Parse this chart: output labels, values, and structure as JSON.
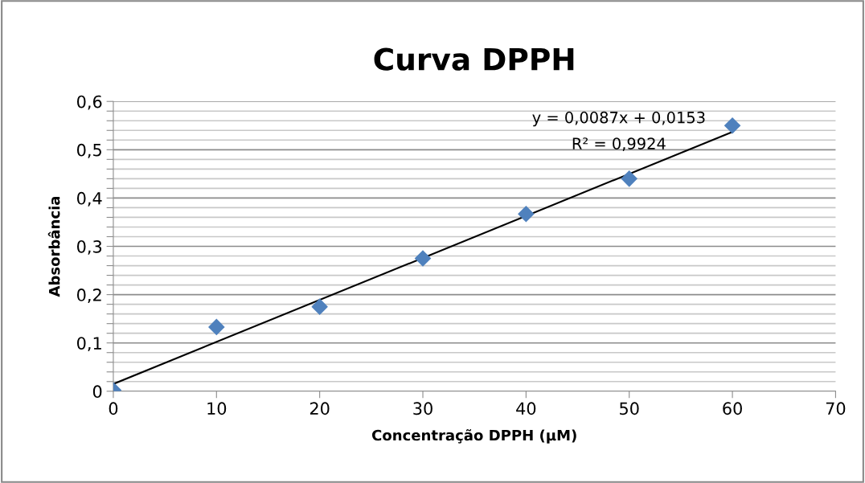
{
  "chart_data": {
    "type": "scatter",
    "title": "Curva DPPH",
    "xlabel": "Concentração DPPH (µM)",
    "ylabel": "Absorbância",
    "x": [
      0,
      10,
      20,
      30,
      40,
      50,
      60
    ],
    "series": [
      {
        "color": "#4f81bd",
        "values": [
          0.002,
          0.133,
          0.175,
          0.275,
          0.367,
          0.44,
          0.55
        ],
        "marker": "diamond"
      },
      {
        "type": "line",
        "color": "#000000",
        "x": [
          0,
          60
        ],
        "values": [
          0.015,
          0.537
        ],
        "marker": "none"
      }
    ],
    "xlim": [
      0,
      70
    ],
    "xticks": [
      0,
      10,
      20,
      30,
      40,
      50,
      60,
      70
    ],
    "ylim": [
      0,
      0.6
    ],
    "yticks": [
      {
        "value": 0,
        "label": "0"
      },
      {
        "value": 0.02,
        "label": null
      },
      {
        "value": 0.04,
        "label": null
      },
      {
        "value": 0.06,
        "label": null
      },
      {
        "value": 0.08,
        "label": null
      },
      {
        "value": 0.1,
        "label": "0,1"
      },
      {
        "value": 0.12,
        "label": null
      },
      {
        "value": 0.14,
        "label": null
      },
      {
        "value": 0.16,
        "label": null
      },
      {
        "value": 0.18,
        "label": null
      },
      {
        "value": 0.2,
        "label": "0,2"
      },
      {
        "value": 0.22,
        "label": null
      },
      {
        "value": 0.24,
        "label": null
      },
      {
        "value": 0.26,
        "label": null
      },
      {
        "value": 0.28,
        "label": null
      },
      {
        "value": 0.3,
        "label": "0,3"
      },
      {
        "value": 0.32,
        "label": null
      },
      {
        "value": 0.34,
        "label": null
      },
      {
        "value": 0.36,
        "label": null
      },
      {
        "value": 0.38,
        "label": null
      },
      {
        "value": 0.4,
        "label": "0,4"
      },
      {
        "value": 0.42,
        "label": null
      },
      {
        "value": 0.44,
        "label": null
      },
      {
        "value": 0.46,
        "label": null
      },
      {
        "value": 0.48,
        "label": null
      },
      {
        "value": 0.5,
        "label": "0,5"
      },
      {
        "value": 0.52,
        "label": null
      },
      {
        "value": 0.54,
        "label": null
      },
      {
        "value": 0.56,
        "label": null
      },
      {
        "value": 0.58,
        "label": null
      },
      {
        "value": 0.6,
        "label": "0,6"
      }
    ],
    "grid": "y",
    "annotations": [
      "y = 0,0087x + 0,0153",
      "R² = 0,9924"
    ]
  }
}
